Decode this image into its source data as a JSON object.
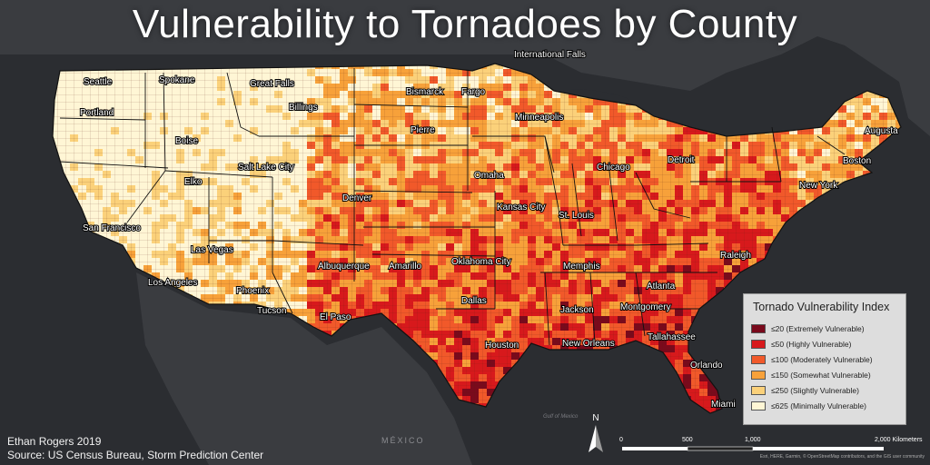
{
  "title": "Vulnerability to Tornadoes by County",
  "credits": {
    "author": "Ethan Rogers 2019",
    "source": "Source: US Census Bureau, Storm Prediction Center"
  },
  "attribution": "Esri, HERE, Garmin, © OpenStreetMap contributors, and the GIS user community",
  "legend": {
    "title": "Tornado Vulnerability Index",
    "items": [
      {
        "label": "≤20 (Extremely Vulnerable)",
        "color": "#7a0a1c"
      },
      {
        "label": "≤50 (Highly Vulnerable)",
        "color": "#d7191c"
      },
      {
        "label": "≤100 (Moderately Vulnerable)",
        "color": "#f1592a"
      },
      {
        "label": "≤150 (Somewhat Vulnerable)",
        "color": "#f7a13a"
      },
      {
        "label": "≤250 (Slightly Vulnerable)",
        "color": "#fbd17a"
      },
      {
        "label": "≤625 (Minimally Vulnerable)",
        "color": "#fff6d5"
      }
    ]
  },
  "scale_bar": {
    "labels": [
      "0",
      "500",
      "1,000",
      "2,000 Kilometers"
    ]
  },
  "north_arrow": "N",
  "background_labels": {
    "mexico": "MÉXICO",
    "gulf": "Gulf of Mexico"
  },
  "cities": [
    "International Falls",
    "Seattle",
    "Spokane",
    "Great Falls",
    "Bismarck",
    "Fargo",
    "Portland",
    "Billings",
    "Minneapolis",
    "Pierre",
    "Boise",
    "Augusta",
    "Salt Lake City",
    "Chicago",
    "Detroit",
    "Boston",
    "Omaha",
    "Elko",
    "Denver",
    "New York",
    "Kansas City",
    "St. Louis",
    "San Francisco",
    "Las Vegas",
    "Raleigh",
    "Albuquerque",
    "Amarillo",
    "Oklahoma City",
    "Memphis",
    "Los Angeles",
    "Phoenix",
    "Atlanta",
    "Dallas",
    "Jackson",
    "Montgomery",
    "Tucson",
    "El Paso",
    "Tallahassee",
    "Houston",
    "New Orleans",
    "Orlando",
    "Miami"
  ]
}
